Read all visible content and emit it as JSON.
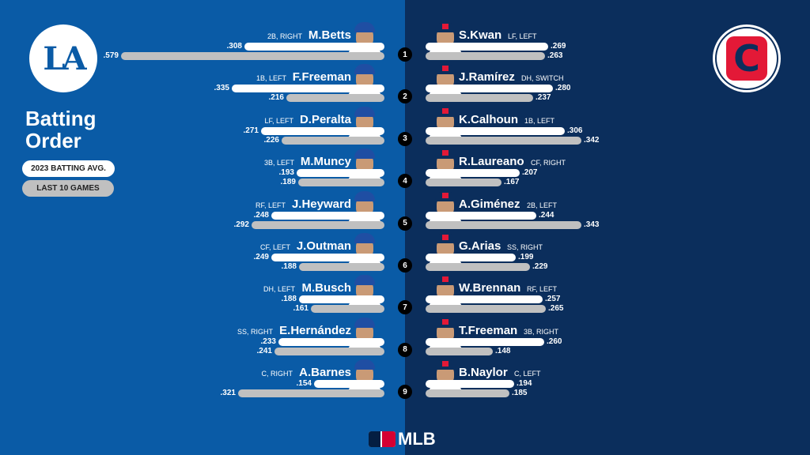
{
  "title": "Batting Order",
  "legend": {
    "season": "2023 BATTING AVG.",
    "last10": "LAST 10 GAMES"
  },
  "home_team": {
    "logo_text": "LA",
    "colors": {
      "primary": "#0a5ba6",
      "cap": "#1f4ea3"
    }
  },
  "away_team": {
    "logo_text": "C",
    "colors": {
      "primary": "#0b2e5c",
      "accent": "#e31937",
      "cap": "#0b2e5c"
    }
  },
  "colors": {
    "season_bar": "#ffffff",
    "last10_bar": "#c0c0c0",
    "badge": "#000000"
  },
  "footer": {
    "brand": "MLB"
  },
  "orders": [
    "1",
    "2",
    "3",
    "4",
    "5",
    "6",
    "7",
    "8",
    "9"
  ],
  "dodgers": [
    {
      "name": "M.Betts",
      "pos": "2B, RIGHT",
      "season": ".308",
      "last10": ".579",
      "season_val": 0.308,
      "last10_val": 0.579
    },
    {
      "name": "F.Freeman",
      "pos": "1B, LEFT",
      "season": ".335",
      "last10": ".216",
      "season_val": 0.335,
      "last10_val": 0.216
    },
    {
      "name": "D.Peralta",
      "pos": "LF, LEFT",
      "season": ".271",
      "last10": ".226",
      "season_val": 0.271,
      "last10_val": 0.226
    },
    {
      "name": "M.Muncy",
      "pos": "3B, LEFT",
      "season": ".193",
      "last10": ".189",
      "season_val": 0.193,
      "last10_val": 0.189
    },
    {
      "name": "J.Heyward",
      "pos": "RF, LEFT",
      "season": ".248",
      "last10": ".292",
      "season_val": 0.248,
      "last10_val": 0.292
    },
    {
      "name": "J.Outman",
      "pos": "CF, LEFT",
      "season": ".249",
      "last10": ".188",
      "season_val": 0.249,
      "last10_val": 0.188
    },
    {
      "name": "M.Busch",
      "pos": "DH, LEFT",
      "season": ".188",
      "last10": ".161",
      "season_val": 0.188,
      "last10_val": 0.161
    },
    {
      "name": "E.Hernández",
      "pos": "SS, RIGHT",
      "season": ".233",
      "last10": ".241",
      "season_val": 0.233,
      "last10_val": 0.241
    },
    {
      "name": "A.Barnes",
      "pos": "C, RIGHT",
      "season": ".154",
      "last10": ".321",
      "season_val": 0.154,
      "last10_val": 0.321
    }
  ],
  "guardians": [
    {
      "name": "S.Kwan",
      "pos": "LF, LEFT",
      "season": ".269",
      "last10": ".263",
      "season_val": 0.269,
      "last10_val": 0.263
    },
    {
      "name": "J.Ramírez",
      "pos": "DH, SWITCH",
      "season": ".280",
      "last10": ".237",
      "season_val": 0.28,
      "last10_val": 0.237
    },
    {
      "name": "K.Calhoun",
      "pos": "1B, LEFT",
      "season": ".306",
      "last10": ".342",
      "season_val": 0.306,
      "last10_val": 0.342
    },
    {
      "name": "R.Laureano",
      "pos": "CF, RIGHT",
      "season": ".207",
      "last10": ".167",
      "season_val": 0.207,
      "last10_val": 0.167
    },
    {
      "name": "A.Giménez",
      "pos": "2B, LEFT",
      "season": ".244",
      "last10": ".343",
      "season_val": 0.244,
      "last10_val": 0.343
    },
    {
      "name": "G.Arias",
      "pos": "SS, RIGHT",
      "season": ".199",
      "last10": ".229",
      "season_val": 0.199,
      "last10_val": 0.229
    },
    {
      "name": "W.Brennan",
      "pos": "RF, LEFT",
      "season": ".257",
      "last10": ".265",
      "season_val": 0.257,
      "last10_val": 0.265
    },
    {
      "name": "T.Freeman",
      "pos": "3B, RIGHT",
      "season": ".260",
      "last10": ".148",
      "season_val": 0.26,
      "last10_val": 0.148
    },
    {
      "name": "B.Naylor",
      "pos": "C, LEFT",
      "season": ".194",
      "last10": ".185",
      "season_val": 0.194,
      "last10_val": 0.185
    }
  ]
}
